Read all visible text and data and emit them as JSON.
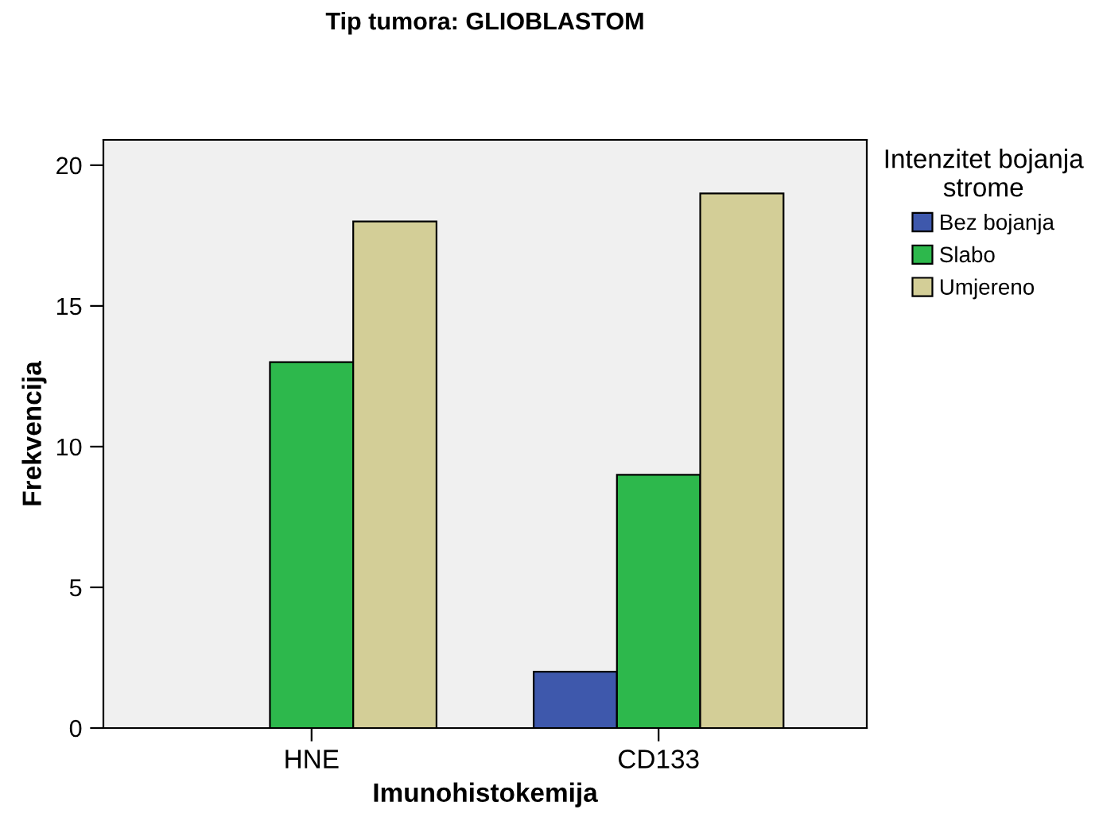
{
  "chart_data": {
    "type": "bar",
    "title": "Tip tumora: GLIOBLASTOM",
    "xlabel": "Imunohistokemija",
    "ylabel": "Frekvencija",
    "legend_title": "Intenzitet bojanja\nstrome",
    "categories": [
      "HNE",
      "CD133"
    ],
    "series": [
      {
        "name": "Bez bojanja",
        "color": "#3e58ac",
        "values": [
          null,
          2
        ]
      },
      {
        "name": "Slabo",
        "color": "#2db84c",
        "values": [
          13,
          9
        ]
      },
      {
        "name": "Umjereno",
        "color": "#d3ce97",
        "values": [
          18,
          19
        ]
      }
    ],
    "ylim": [
      0,
      20.9
    ],
    "yticks": [
      0,
      5,
      10,
      15,
      20
    ],
    "grid": false,
    "legend": "right"
  }
}
